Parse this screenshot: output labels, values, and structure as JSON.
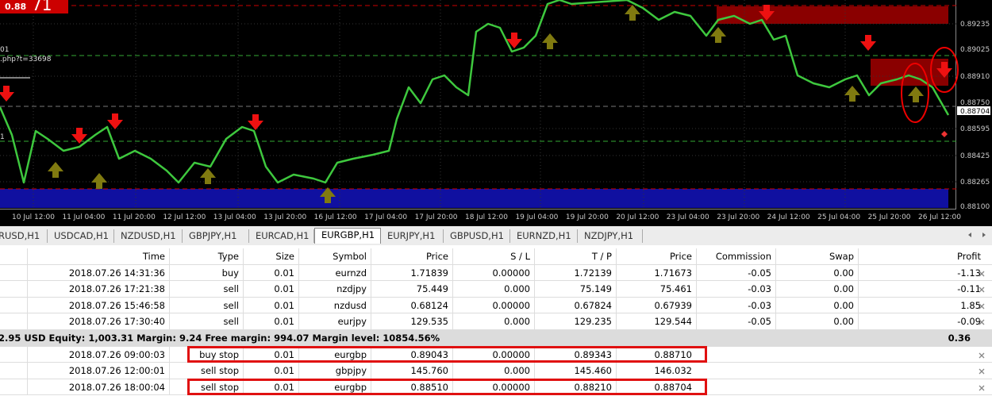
{
  "chart": {
    "badge": "0.88",
    "badge_digits": "71",
    "left_labels": [
      "01",
      ".php?t=33698",
      "1"
    ],
    "price_labels": [
      "0.89235",
      "0.89025",
      "0.88910",
      "0.88750",
      "0.88595",
      "0.88425",
      "0.88265",
      "0.88100"
    ],
    "current_price": "0.88704",
    "time_labels": [
      "10 Jul 12:00",
      "11 Jul 04:00",
      "11 Jul 20:00",
      "12 Jul 12:00",
      "13 Jul 04:00",
      "13 Jul 20:00",
      "16 Jul 12:00",
      "17 Jul 04:00",
      "17 Jul 20:00",
      "18 Jul 12:00",
      "19 Jul 04:00",
      "19 Jul 20:00",
      "20 Jul 12:00",
      "23 Jul 04:00",
      "23 Jul 20:00",
      "24 Jul 12:00",
      "25 Jul 04:00",
      "25 Jul 20:00",
      "26 Jul 12:00"
    ]
  },
  "tabs": {
    "items": [
      "RUSD,H1",
      "USDCAD,H1",
      "NZDUSD,H1",
      "GBPJPY,H1",
      "EURCAD,H1",
      "EURGBP,H1",
      "EURJPY,H1",
      "GBPUSD,H1",
      "EURNZD,H1",
      "NZDJPY,H1"
    ],
    "active": 5
  },
  "table": {
    "columns": [
      "Time",
      "Type",
      "Size",
      "Symbol",
      "Price",
      "S / L",
      "T / P",
      "Price",
      "Commission",
      "Swap",
      "Profit"
    ],
    "rows": [
      [
        "2018.07.26 14:31:36",
        "buy",
        "0.01",
        "eurnzd",
        "1.71839",
        "0.00000",
        "1.72139",
        "1.71673",
        "-0.05",
        "0.00",
        "-1.13"
      ],
      [
        "2018.07.26 17:21:38",
        "sell",
        "0.01",
        "nzdjpy",
        "75.449",
        "0.000",
        "75.149",
        "75.461",
        "-0.03",
        "0.00",
        "-0.11"
      ],
      [
        "2018.07.26 15:46:58",
        "sell",
        "0.01",
        "nzdusd",
        "0.68124",
        "0.00000",
        "0.67824",
        "0.67939",
        "-0.03",
        "0.00",
        "1.85"
      ],
      [
        "2018.07.26 17:30:40",
        "sell",
        "0.01",
        "eurjpy",
        "129.535",
        "0.000",
        "129.235",
        "129.544",
        "-0.05",
        "0.00",
        "-0.09"
      ]
    ],
    "summary": {
      "text": "2.95 USD  Equity: 1,003.31  Margin: 9.24  Free margin: 994.07  Margin level: 10854.56%",
      "profit": "0.36"
    },
    "pending": [
      [
        "2018.07.26 09:00:03",
        "buy stop",
        "0.01",
        "eurgbp",
        "0.89043",
        "0.00000",
        "0.89343",
        "0.88710"
      ],
      [
        "2018.07.26 12:00:01",
        "sell stop",
        "0.01",
        "gbpjpy",
        "145.760",
        "0.000",
        "145.460",
        "146.032"
      ],
      [
        "2018.07.26 18:00:04",
        "sell stop",
        "0.01",
        "eurgbp",
        "0.88510",
        "0.00000",
        "0.88210",
        "0.88704"
      ]
    ]
  }
}
